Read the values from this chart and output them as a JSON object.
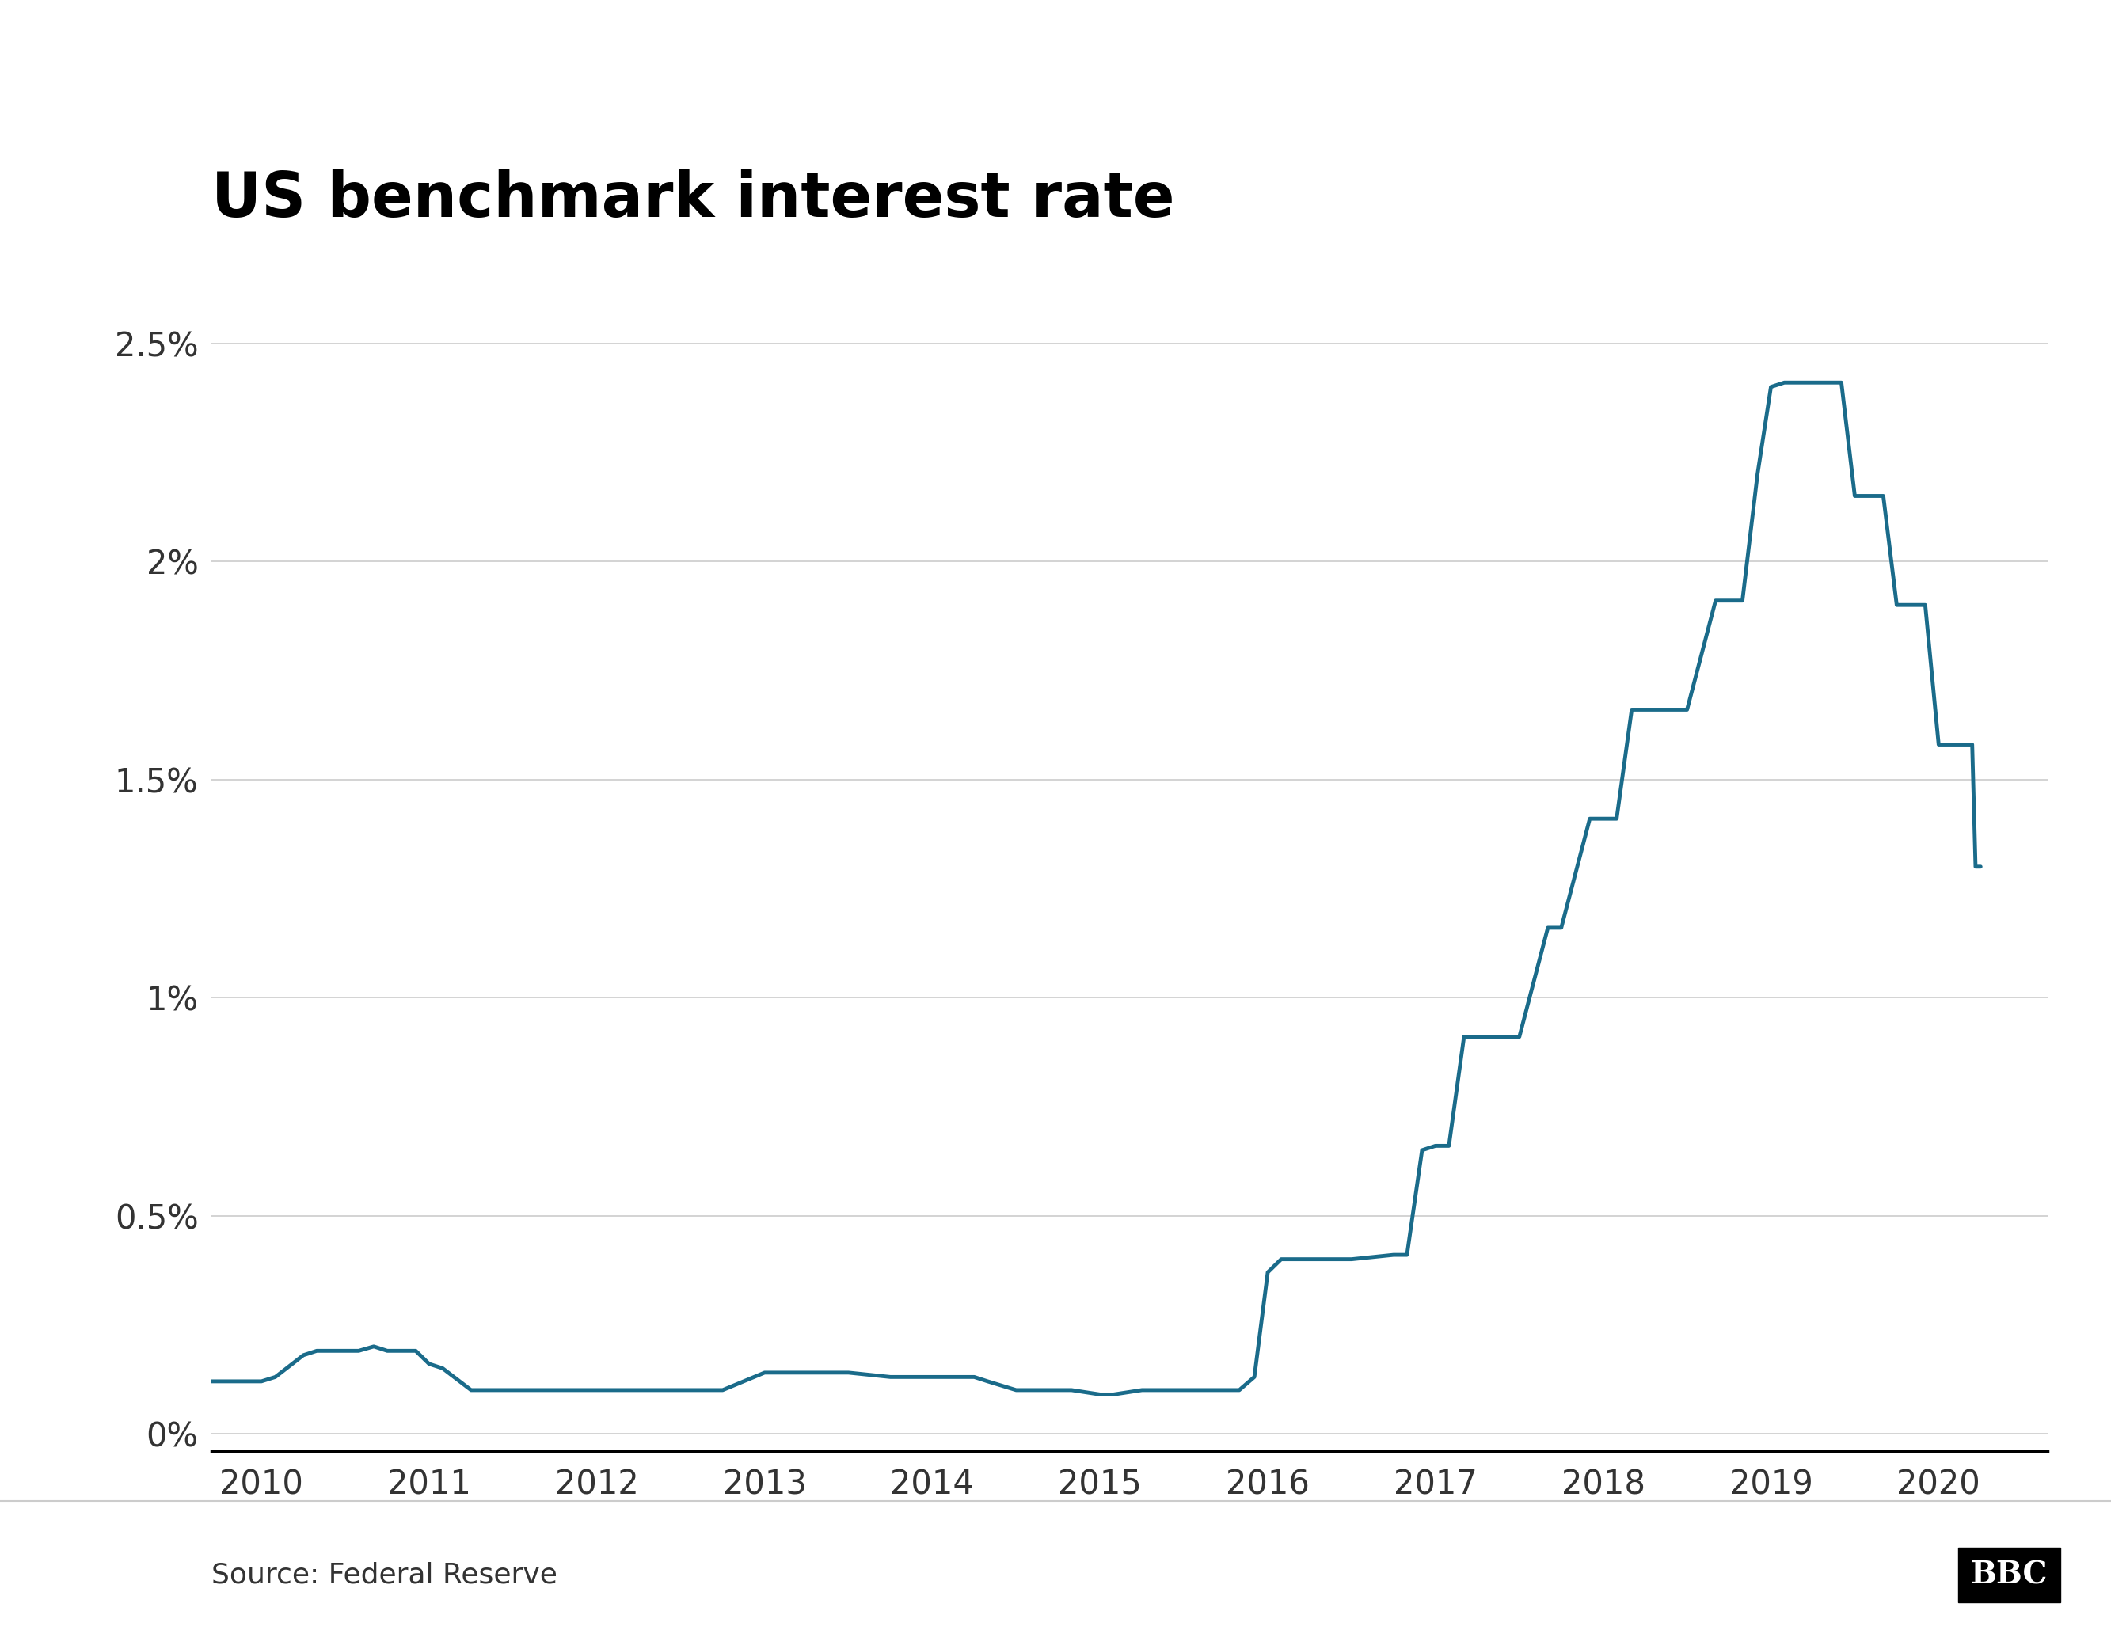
{
  "title": "US benchmark interest rate",
  "line_color": "#1a6b8a",
  "background_color": "#ffffff",
  "source_text": "Source: Federal Reserve",
  "bbc_logo": "BBC",
  "yticks": [
    0.0,
    0.5,
    1.0,
    1.5,
    2.0,
    2.5
  ],
  "ytick_labels": [
    "0%",
    "0.5%",
    "1%",
    "1.5%",
    "2%",
    "2.5%"
  ],
  "xlim_start": 2009.7,
  "xlim_end": 2020.65,
  "ylim": [
    -0.04,
    2.72
  ],
  "xtick_vals": [
    2010,
    2011,
    2012,
    2013,
    2014,
    2015,
    2016,
    2017,
    2018,
    2019,
    2020
  ],
  "data": [
    [
      2009.5,
      0.12
    ],
    [
      2010.0,
      0.12
    ],
    [
      2010.083,
      0.13
    ],
    [
      2010.15,
      0.15
    ],
    [
      2010.25,
      0.18
    ],
    [
      2010.33,
      0.19
    ],
    [
      2010.42,
      0.19
    ],
    [
      2010.5,
      0.19
    ],
    [
      2010.58,
      0.19
    ],
    [
      2010.67,
      0.2
    ],
    [
      2010.75,
      0.19
    ],
    [
      2010.83,
      0.19
    ],
    [
      2010.92,
      0.19
    ],
    [
      2011.0,
      0.16
    ],
    [
      2011.08,
      0.15
    ],
    [
      2011.25,
      0.1
    ],
    [
      2011.33,
      0.1
    ],
    [
      2011.5,
      0.1
    ],
    [
      2011.75,
      0.1
    ],
    [
      2012.0,
      0.1
    ],
    [
      2012.25,
      0.1
    ],
    [
      2012.5,
      0.1
    ],
    [
      2012.75,
      0.1
    ],
    [
      2013.0,
      0.14
    ],
    [
      2013.08,
      0.14
    ],
    [
      2013.25,
      0.14
    ],
    [
      2013.5,
      0.14
    ],
    [
      2013.75,
      0.13
    ],
    [
      2014.0,
      0.13
    ],
    [
      2014.25,
      0.13
    ],
    [
      2014.33,
      0.12
    ],
    [
      2014.5,
      0.1
    ],
    [
      2014.67,
      0.1
    ],
    [
      2014.83,
      0.1
    ],
    [
      2015.0,
      0.09
    ],
    [
      2015.08,
      0.09
    ],
    [
      2015.25,
      0.1
    ],
    [
      2015.5,
      0.1
    ],
    [
      2015.75,
      0.1
    ],
    [
      2015.83,
      0.1
    ],
    [
      2015.92,
      0.13
    ],
    [
      2016.0,
      0.37
    ],
    [
      2016.08,
      0.4
    ],
    [
      2016.17,
      0.4
    ],
    [
      2016.25,
      0.4
    ],
    [
      2016.5,
      0.4
    ],
    [
      2016.75,
      0.41
    ],
    [
      2016.83,
      0.41
    ],
    [
      2016.92,
      0.65
    ],
    [
      2017.0,
      0.66
    ],
    [
      2017.08,
      0.66
    ],
    [
      2017.17,
      0.91
    ],
    [
      2017.25,
      0.91
    ],
    [
      2017.5,
      0.91
    ],
    [
      2017.67,
      1.16
    ],
    [
      2017.75,
      1.16
    ],
    [
      2017.92,
      1.41
    ],
    [
      2018.0,
      1.41
    ],
    [
      2018.08,
      1.41
    ],
    [
      2018.17,
      1.66
    ],
    [
      2018.25,
      1.66
    ],
    [
      2018.5,
      1.66
    ],
    [
      2018.67,
      1.91
    ],
    [
      2018.75,
      1.91
    ],
    [
      2018.83,
      1.91
    ],
    [
      2018.92,
      2.2
    ],
    [
      2019.0,
      2.4
    ],
    [
      2019.08,
      2.41
    ],
    [
      2019.17,
      2.41
    ],
    [
      2019.25,
      2.41
    ],
    [
      2019.42,
      2.41
    ],
    [
      2019.5,
      2.15
    ],
    [
      2019.58,
      2.15
    ],
    [
      2019.67,
      2.15
    ],
    [
      2019.75,
      1.9
    ],
    [
      2019.83,
      1.9
    ],
    [
      2019.92,
      1.9
    ],
    [
      2020.0,
      1.58
    ],
    [
      2020.08,
      1.58
    ],
    [
      2020.15,
      1.58
    ],
    [
      2020.17,
      1.58
    ],
    [
      2020.2,
      1.58
    ],
    [
      2020.22,
      1.3
    ],
    [
      2020.25,
      1.3
    ]
  ]
}
